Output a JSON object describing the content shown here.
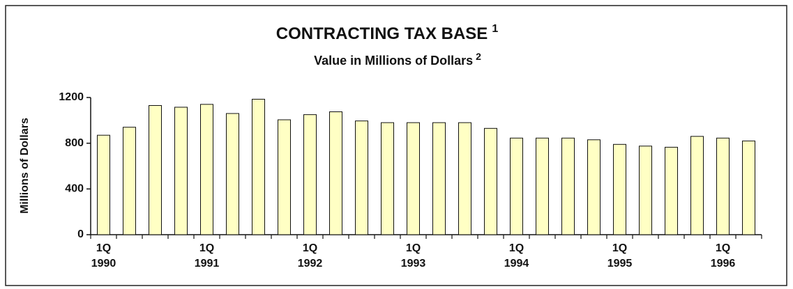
{
  "chart_data": {
    "type": "bar",
    "title": "CONTRACTING TAX BASE",
    "title_note": "1",
    "subtitle": "Value in Millions of Dollars",
    "subtitle_note": "2",
    "y_label": "Millions of Dollars",
    "categories": [
      [
        "1Q",
        "1990"
      ],
      null,
      null,
      null,
      [
        "1Q",
        "1991"
      ],
      null,
      null,
      null,
      [
        "1Q",
        "1992"
      ],
      null,
      null,
      null,
      [
        "1Q",
        "1993"
      ],
      null,
      null,
      null,
      [
        "1Q",
        "1994"
      ],
      null,
      null,
      null,
      [
        "1Q",
        "1995"
      ],
      null,
      null,
      null,
      [
        "1Q",
        "1996"
      ],
      null
    ],
    "values": [
      870,
      940,
      1130,
      1115,
      1140,
      1060,
      1185,
      1005,
      1050,
      1075,
      995,
      980,
      980,
      980,
      980,
      930,
      845,
      845,
      845,
      830,
      790,
      775,
      765,
      860,
      845,
      820
    ],
    "color": "#ffffc4",
    "ylim": [
      0,
      1200
    ],
    "yticks": [
      0,
      400,
      800,
      1200
    ],
    "grid": false
  }
}
